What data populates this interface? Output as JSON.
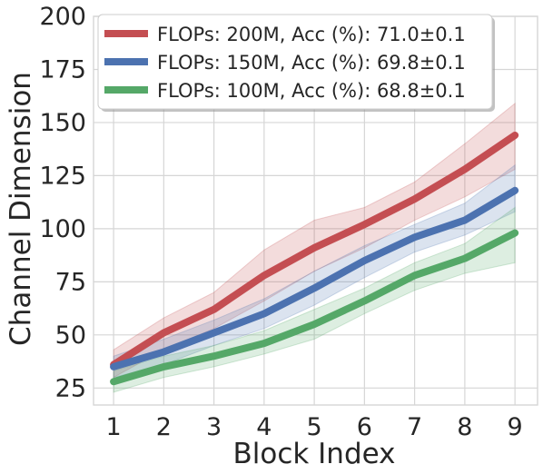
{
  "chart_data": {
    "type": "line",
    "title": "",
    "xlabel": "Block Index",
    "ylabel": "Channel Dimension",
    "x": [
      1,
      2,
      3,
      4,
      5,
      6,
      7,
      8,
      9
    ],
    "xticks": [
      "1",
      "2",
      "3",
      "4",
      "5",
      "6",
      "7",
      "8",
      "9"
    ],
    "yticks": [
      "25",
      "50",
      "75",
      "100",
      "125",
      "150",
      "175",
      "200"
    ],
    "xlim": [
      0.6,
      9.45
    ],
    "ylim": [
      17,
      200
    ],
    "grid": true,
    "legend_position": "top-left",
    "series": [
      {
        "name": "FLOPs: 200M, Acc (%): 71.0±0.1",
        "color": "#c44e52",
        "values": [
          36,
          51,
          62,
          78,
          91,
          102,
          114,
          128,
          144
        ],
        "lower": [
          30,
          43,
          53,
          66,
          80,
          91,
          104,
          115,
          128
        ],
        "upper": [
          43,
          58,
          70,
          90,
          104,
          110,
          122,
          140,
          159
        ]
      },
      {
        "name": "FLOPs: 150M, Acc (%): 69.8±0.1",
        "color": "#4c72b0",
        "values": [
          35,
          42,
          51,
          60,
          72,
          85,
          96,
          104,
          118
        ],
        "lower": [
          30,
          36,
          45,
          53,
          64,
          77,
          89,
          97,
          108
        ],
        "upper": [
          40,
          48,
          57,
          67,
          80,
          92,
          102,
          112,
          130
        ]
      },
      {
        "name": "FLOPs: 100M, Acc (%): 68.8±0.1",
        "color": "#55a868",
        "values": [
          28,
          35,
          40,
          46,
          55,
          66,
          78,
          86,
          98
        ],
        "lower": [
          23,
          30,
          35,
          41,
          48,
          60,
          71,
          79,
          84
        ],
        "upper": [
          33,
          40,
          45,
          52,
          62,
          72,
          84,
          93,
          110
        ]
      }
    ]
  }
}
